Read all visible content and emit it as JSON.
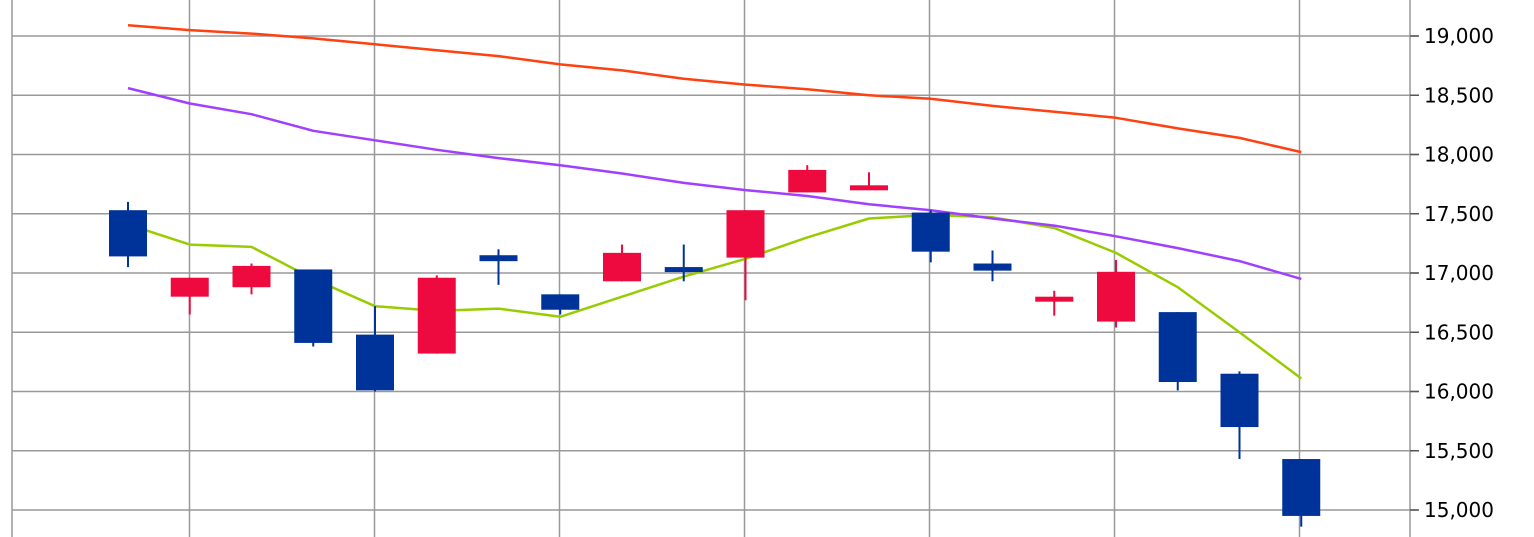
{
  "chart_data": {
    "type": "candlestick",
    "title": "",
    "xlabel": "",
    "ylabel": "",
    "ylim": [
      14900,
      19200
    ],
    "y_axis_position": "right",
    "grid": true,
    "y_ticks": [
      15000,
      15500,
      16000,
      16500,
      17000,
      17500,
      18000,
      18500,
      19000
    ],
    "y_tick_labels": [
      "15,000",
      "15,500",
      "16,000",
      "16,500",
      "17,000",
      "17,500",
      "18,000",
      "18,500",
      "19,000"
    ],
    "colors": {
      "up": "#ee0a3e",
      "down": "#003399",
      "grid": "#999999"
    },
    "candles": [
      {
        "open": 17530,
        "high": 17600,
        "low": 17050,
        "close": 17140
      },
      {
        "open": 16800,
        "high": 16960,
        "low": 16650,
        "close": 16960
      },
      {
        "open": 16880,
        "high": 17080,
        "low": 16820,
        "close": 17060
      },
      {
        "open": 17030,
        "high": 17030,
        "low": 16380,
        "close": 16410
      },
      {
        "open": 16480,
        "high": 16720,
        "low": 16000,
        "close": 16010
      },
      {
        "open": 16320,
        "high": 16980,
        "low": 16320,
        "close": 16960
      },
      {
        "open": 17150,
        "high": 17200,
        "low": 16900,
        "close": 17100
      },
      {
        "open": 16820,
        "high": 16820,
        "low": 16650,
        "close": 16690
      },
      {
        "open": 16930,
        "high": 17240,
        "low": 16930,
        "close": 17170
      },
      {
        "open": 17050,
        "high": 17240,
        "low": 16930,
        "close": 17030
      },
      {
        "open": 17130,
        "high": 17530,
        "low": 16770,
        "close": 17530
      },
      {
        "open": 17680,
        "high": 17910,
        "low": 17680,
        "close": 17870
      },
      {
        "open": 17700,
        "high": 17850,
        "low": 17700,
        "close": 17740
      },
      {
        "open": 17510,
        "high": 17530,
        "low": 17090,
        "close": 17180
      },
      {
        "open": 17080,
        "high": 17190,
        "low": 16930,
        "close": 17020
      },
      {
        "open": 16780,
        "high": 16850,
        "low": 16640,
        "close": 16800
      },
      {
        "open": 16590,
        "high": 17110,
        "low": 16540,
        "close": 17010
      },
      {
        "open": 16670,
        "high": 16670,
        "low": 16010,
        "close": 16080
      },
      {
        "open": 16150,
        "high": 16170,
        "low": 15430,
        "close": 15700
      },
      {
        "open": 15430,
        "high": 15430,
        "low": 14860,
        "close": 14950
      }
    ],
    "series": [
      {
        "color": "#99cc00",
        "values": [
          17410,
          17240,
          17220,
          16950,
          16720,
          16680,
          16700,
          16630,
          16800,
          16970,
          17120,
          17300,
          17460,
          17490,
          17470,
          17380,
          17170,
          16880,
          16500,
          16110
        ]
      },
      {
        "color": "#a040ff",
        "values": [
          18560,
          18430,
          18340,
          18200,
          18120,
          18040,
          17970,
          17910,
          17840,
          17760,
          17700,
          17650,
          17580,
          17530,
          17460,
          17400,
          17310,
          17210,
          17100,
          16950
        ]
      },
      {
        "color": "#ff4010",
        "values": [
          19090,
          19050,
          19020,
          18980,
          18930,
          18880,
          18830,
          18760,
          18710,
          18640,
          18590,
          18550,
          18500,
          18470,
          18410,
          18360,
          18310,
          18220,
          18140,
          18020
        ]
      }
    ]
  }
}
